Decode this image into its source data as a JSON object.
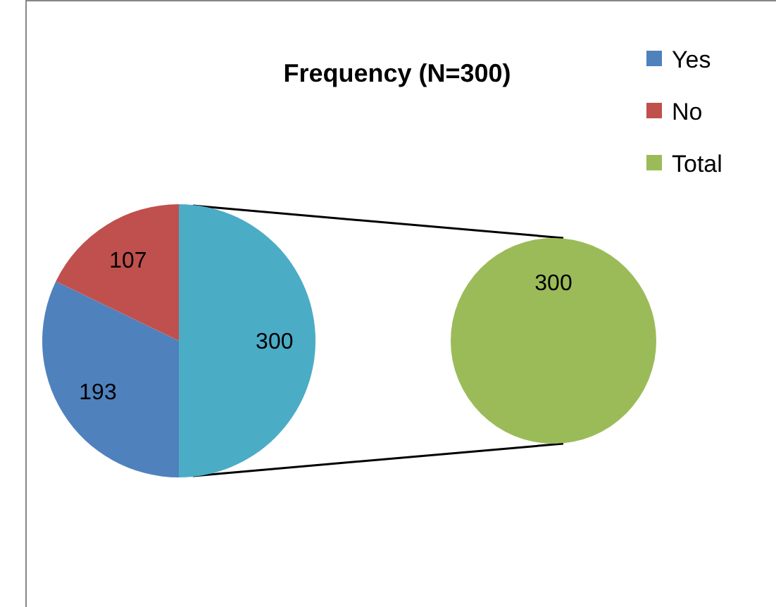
{
  "chart_data": [
    {
      "type": "pie",
      "title": "Frequency (N=300)",
      "categories": [
        "Yes",
        "No",
        null
      ],
      "values": [
        193,
        107,
        300
      ],
      "colors": [
        "#4f81bd",
        "#c0504d",
        "#4bacc6"
      ],
      "data_labels": true,
      "legend": "top right"
    },
    {
      "type": "pie",
      "categories": [
        "Total"
      ],
      "values": [
        300
      ],
      "colors": [
        "#9bbb59"
      ],
      "data_labels": true,
      "legend": "top right"
    }
  ]
}
